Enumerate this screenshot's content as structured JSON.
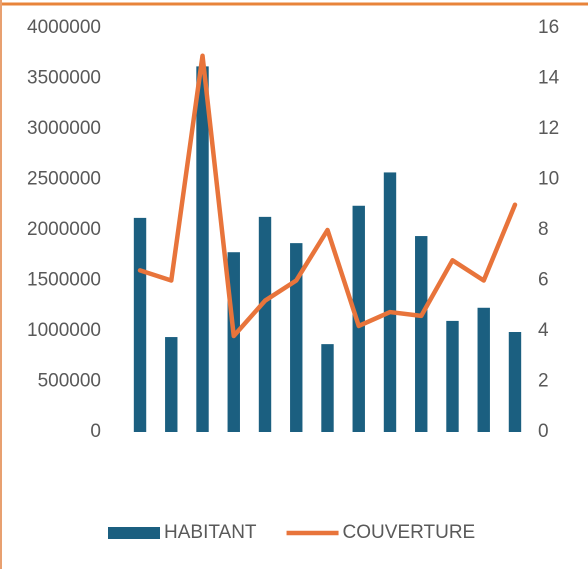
{
  "chart_data": {
    "type": "bar-line",
    "categories": [
      null,
      null,
      null,
      null,
      null,
      null,
      null,
      null,
      null,
      null,
      null,
      null,
      null
    ],
    "series": [
      {
        "name": "HABITANT",
        "type": "bar",
        "color": "#1b5f80",
        "axis": "y",
        "values": [
          2120000,
          940000,
          3620000,
          1780000,
          2130000,
          1870000,
          870000,
          2240000,
          2570000,
          1940000,
          1100000,
          1230000,
          990000
        ]
      },
      {
        "name": "COUVERTURE",
        "type": "line",
        "color": "#e8743b",
        "axis": "y2",
        "values": [
          6.4,
          6.0,
          14.9,
          3.8,
          5.2,
          6.0,
          8.0,
          4.2,
          4.75,
          4.6,
          6.8,
          6.0,
          9.0
        ]
      }
    ],
    "ylim": [
      0,
      4000000
    ],
    "yticks": [
      0,
      500000,
      1000000,
      1500000,
      2000000,
      2500000,
      3000000,
      3500000,
      4000000
    ],
    "y2lim": [
      0,
      16
    ],
    "y2ticks": [
      0,
      2,
      4,
      6,
      8,
      10,
      12,
      14,
      16
    ],
    "grid": false,
    "legend": "bottom"
  }
}
